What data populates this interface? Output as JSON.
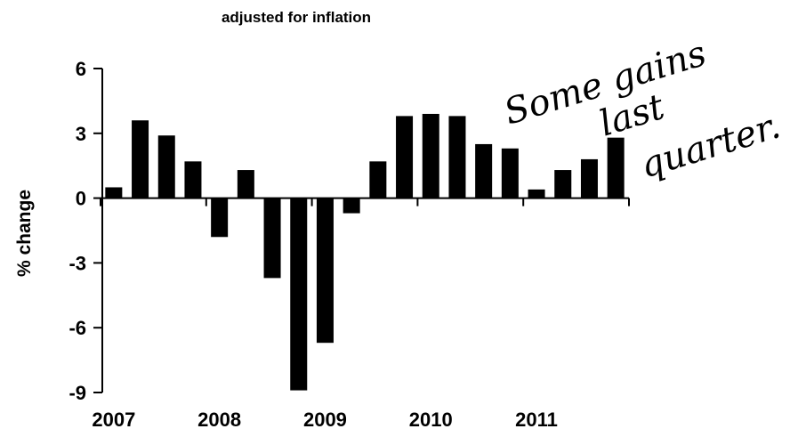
{
  "chart_data": {
    "type": "bar",
    "title": "",
    "subtitle": "adjusted for inflation",
    "xlabel": "",
    "ylabel": "% change",
    "ylim": [
      -9,
      6
    ],
    "yticks": [
      "6",
      "3",
      "0",
      "-3",
      "-6",
      "-9"
    ],
    "year_labels": [
      "2007",
      "2008",
      "2009",
      "2010",
      "2011"
    ],
    "grid": false,
    "bar_color": "#000000",
    "categories": [
      "2007 Q1",
      "2007 Q2",
      "2007 Q3",
      "2007 Q4",
      "2008 Q1",
      "2008 Q2",
      "2008 Q3",
      "2008 Q4",
      "2009 Q1",
      "2009 Q2",
      "2009 Q3",
      "2009 Q4",
      "2010 Q1",
      "2010 Q2",
      "2010 Q3",
      "2010 Q4",
      "2011 Q1",
      "2011 Q2",
      "2011 Q3",
      "2011 Q4"
    ],
    "values": [
      0.5,
      3.6,
      2.9,
      1.7,
      -1.8,
      1.3,
      -3.7,
      -8.9,
      -6.7,
      -0.7,
      1.7,
      3.8,
      3.9,
      3.8,
      2.5,
      2.3,
      0.4,
      1.3,
      1.8,
      2.8
    ],
    "annotation": [
      "Some gains",
      "last",
      "quarter."
    ]
  }
}
